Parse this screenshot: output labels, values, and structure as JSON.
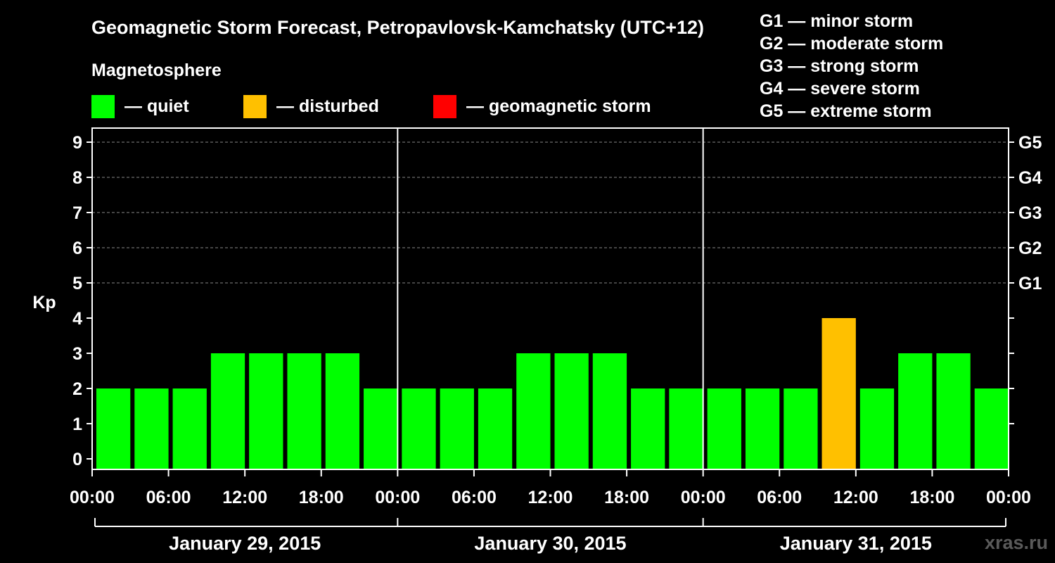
{
  "title": "Geomagnetic Storm Forecast, Petropavlovsk-Kamchatsky (UTC+12)",
  "legend": {
    "heading": "Magnetosphere",
    "items": [
      {
        "label": "— quiet",
        "color": "#00ff00"
      },
      {
        "label": "— disturbed",
        "color": "#ffc000"
      },
      {
        "label": "— geomagnetic storm",
        "color": "#ff0000"
      }
    ]
  },
  "storm_scale": [
    "G1 — minor storm",
    "G2 — moderate storm",
    "G3 — strong storm",
    "G4 — severe storm",
    "G5 — extreme storm"
  ],
  "watermark": "xras.ru",
  "chart_data": {
    "type": "bar",
    "ylabel": "Kp",
    "ylim": [
      0,
      9
    ],
    "yticks": [
      0,
      1,
      2,
      3,
      4,
      5,
      6,
      7,
      8,
      9
    ],
    "right_ticks": [
      {
        "value": 5,
        "label": "G1"
      },
      {
        "value": 6,
        "label": "G2"
      },
      {
        "value": 7,
        "label": "G3"
      },
      {
        "value": 8,
        "label": "G4"
      },
      {
        "value": 9,
        "label": "G5"
      }
    ],
    "x_tick_labels": [
      "00:00",
      "06:00",
      "12:00",
      "18:00",
      "00:00",
      "06:00",
      "12:00",
      "18:00",
      "00:00",
      "06:00",
      "12:00",
      "18:00",
      "00:00"
    ],
    "days": [
      "January 29, 2015",
      "January 30, 2015",
      "January 31, 2015"
    ],
    "interval_hours": 3,
    "values": [
      2,
      2,
      2,
      3,
      3,
      3,
      3,
      2,
      2,
      2,
      2,
      3,
      3,
      3,
      2,
      2,
      2,
      2,
      2,
      4,
      2,
      3,
      3,
      2
    ],
    "colors": {
      "quiet": "#00ff00",
      "disturbed": "#ffc000",
      "storm": "#ff0000"
    },
    "grid": true
  }
}
